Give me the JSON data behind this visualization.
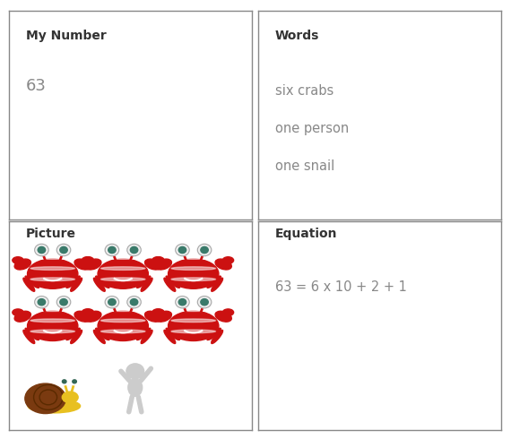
{
  "title_my_number": "My Number",
  "title_words": "Words",
  "title_picture": "Picture",
  "title_equation": "Equation",
  "number": "63",
  "words": [
    "six crabs",
    "one person",
    "one snail"
  ],
  "equation": "63 = 6 x 10 + 2 + 1",
  "background_color": "#ffffff",
  "border_color": "#888888",
  "title_color": "#333333",
  "text_color": "#888888",
  "title_fontsize": 10,
  "number_fontsize": 13,
  "words_fontsize": 10.5,
  "equation_fontsize": 10.5,
  "crab_color": "#cc1111",
  "crab_white": "#ffffff",
  "crab_eye_outer": "#f0f0f0",
  "crab_eye_inner": "#3a7a6a",
  "snail_shell": "#7a3a10",
  "snail_body": "#e8c020",
  "person_color": "#cccccc",
  "fig_width": 5.7,
  "fig_height": 4.9,
  "dpi": 100
}
